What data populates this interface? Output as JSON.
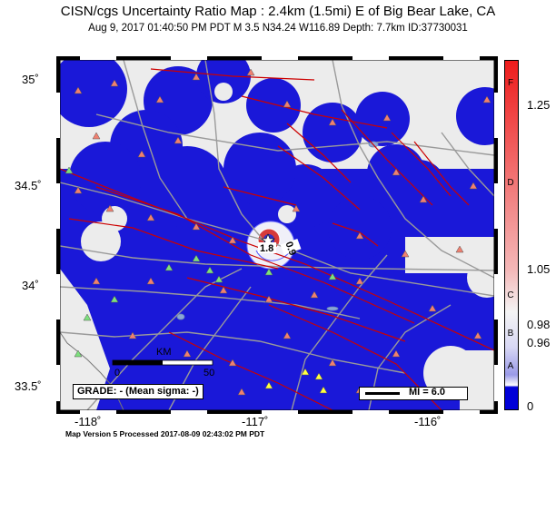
{
  "header": {
    "title": "CISN/cgs Uncertainty Ratio Map : 2.4km (1.5mi) E of Big Bear Lake, CA",
    "subtitle": "Aug  9, 2017 01:40:50 PM PDT   M 3.5   N34.24 W116.89   Depth: 7.7km   ID:37730031"
  },
  "axes": {
    "lat_labels": [
      "35˚",
      "34.5˚",
      "34˚",
      "33.5˚"
    ],
    "lon_labels": [
      "-118˚",
      "-117˚",
      "-116˚"
    ]
  },
  "scale": {
    "label": "KM",
    "start": "0",
    "end": "50"
  },
  "grade_text": "GRADE: - (Mean sigma: -)",
  "mi_text": "MI = 6.0",
  "epicenter_labels": [
    "1.8",
    "0.9"
  ],
  "colorbar": {
    "ticks": [
      "1.25",
      "1.05",
      "0.98",
      "0.96",
      "0"
    ],
    "grades": [
      "F",
      "D",
      "C",
      "B",
      "A"
    ],
    "colors": {
      "high": "#ee1c1c",
      "mid": "#f4f4f4",
      "low": "#0000d8"
    }
  },
  "footer": "Map Version 5 Processed 2017-08-09 02:43:02 PM PDT",
  "map_colors": {
    "coverage": "#1a18d8",
    "background": "#ececec",
    "faults": "#cc0000",
    "roads": "#9a9a9a"
  }
}
